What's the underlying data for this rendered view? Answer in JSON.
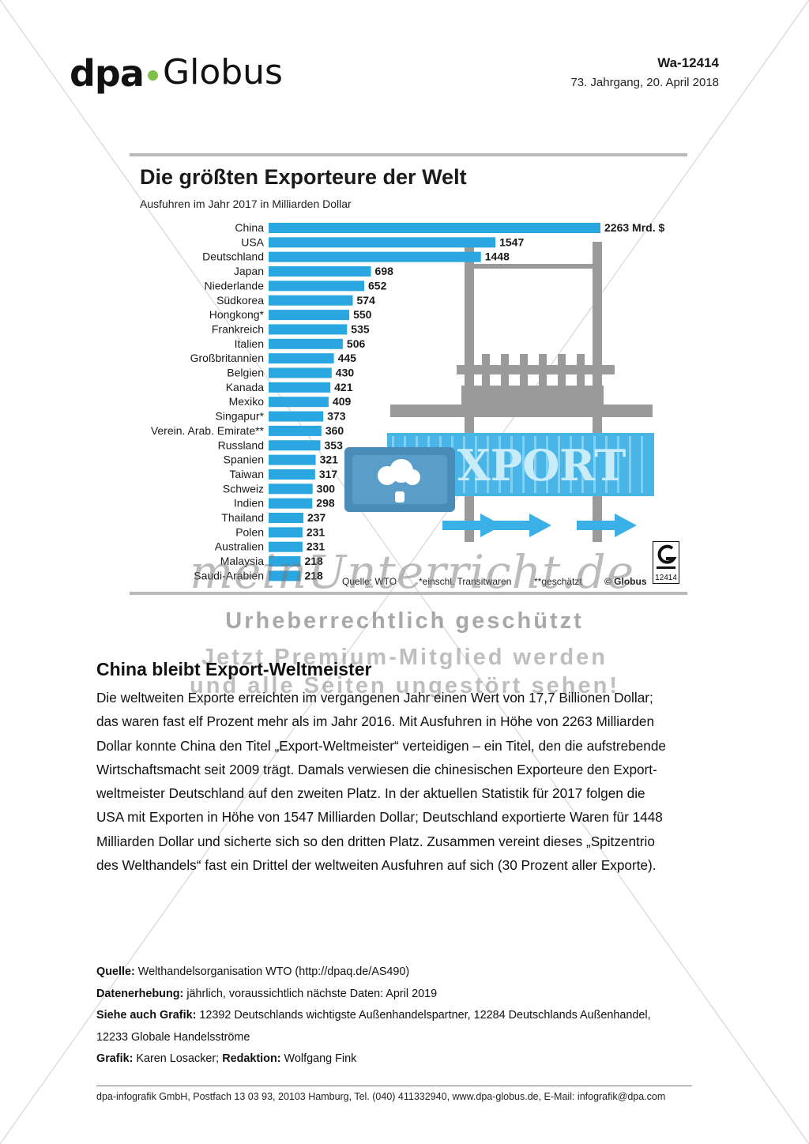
{
  "header": {
    "logo_dpa": "dpa",
    "logo_globus": "Globus",
    "code": "Wa-12414",
    "date": "73. Jahrgang, 20. April 2018"
  },
  "chart_data": {
    "type": "bar",
    "orientation": "horizontal",
    "title": "Die größten Exporteure der Welt",
    "subtitle": "Ausfuhren im Jahr 2017 in Milliarden Dollar",
    "unit_suffix_first": "Mrd. $",
    "categories": [
      "China",
      "USA",
      "Deutschland",
      "Japan",
      "Niederlande",
      "Südkorea",
      "Hongkong*",
      "Frankreich",
      "Italien",
      "Großbritannien",
      "Belgien",
      "Kanada",
      "Mexiko",
      "Singapur*",
      "Verein. Arab. Emirate**",
      "Russland",
      "Spanien",
      "Taiwan",
      "Schweiz",
      "Indien",
      "Thailand",
      "Polen",
      "Australien",
      "Malaysia",
      "Saudi-Arabien"
    ],
    "values": [
      2263,
      1547,
      1448,
      698,
      652,
      574,
      550,
      535,
      506,
      445,
      430,
      421,
      409,
      373,
      360,
      353,
      321,
      317,
      300,
      298,
      237,
      231,
      231,
      218,
      218
    ],
    "bar_color": "#2aa6e1",
    "grid": false
  },
  "illustration": {
    "container_label": "EXPORT",
    "container_color": "#49b4e6",
    "crane_color": "#9a9a9a"
  },
  "source": {
    "quelle": "Quelle: WTO",
    "note1": "*einschl. Transitwaren",
    "note2": "**geschätzt",
    "copyright": "© Globus",
    "badge_number": "12414"
  },
  "watermark": {
    "script": "meinUnterricht.de",
    "line1": "Urheberrechtlich geschützt",
    "line2": "Jetzt Premium-Mitglied werden",
    "line3": "und alle Seiten ungestört sehen!"
  },
  "article": {
    "title": "China bleibt Export-Weltmeister",
    "lines": [
      "Die weltweiten Exporte erreichten im vergangenen Jahr einen Wert von 17,7 Billionen Dollar;",
      "das waren fast elf Prozent mehr als im Jahr 2016. Mit Ausfuhren in Höhe von 2263 Milliarden",
      "Dollar konnte China den Titel „Export-Weltmeister“ verteidigen – ein Titel, den die aufstrebende",
      "Wirtschaftsmacht seit 2009 trägt. Damals verwiesen die chinesischen Exporteure den Export-",
      "weltmeister Deutschland auf den zweiten Platz. In der aktuellen Statistik für 2017 folgen die",
      "USA mit Exporten in Höhe von 1547 Milliarden Dollar; Deutschland exportierte Waren für 1448",
      "Milliarden Dollar und sicherte sich so den dritten Platz. Zusammen vereint dieses „Spitzentrio",
      "des Welthandels“ fast ein Drittel der weltweiten Ausfuhren auf sich (30 Prozent aller Exporte)."
    ]
  },
  "meta": {
    "quelle_label": "Quelle:",
    "quelle_value": " Welthandelsorganisation WTO (http://dpaq.de/AS490)",
    "erhebung_label": "Datenerhebung:",
    "erhebung_value": " jährlich, voraussichtlich nächste Daten: April 2019",
    "siehe_label": "Siehe auch Grafik:",
    "siehe_value": " 12392 Deutschlands wichtigste Außenhandelspartner, 12284 Deutschlands Außenhandel,",
    "siehe_value2": "12233 Globale Handelsströme",
    "grafik_label": "Grafik:",
    "grafik_value": " Karen Losacker; ",
    "redaktion_label": "Redaktion:",
    "redaktion_value": " Wolfgang Fink"
  },
  "footer": {
    "text": "dpa-infografik GmbH, Postfach 13 03 93, 20103 Hamburg, Tel. (040) 411332940, www.dpa-globus.de, E-Mail: infografik@dpa.com"
  }
}
